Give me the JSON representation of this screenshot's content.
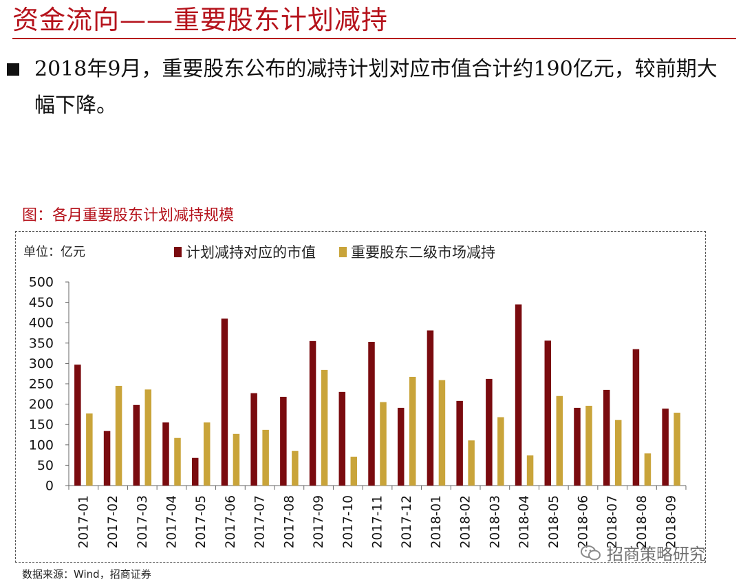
{
  "header": {
    "title": "资金流向——重要股东计划减持"
  },
  "bullet": {
    "text": "2018年9月，重要股东公布的减持计划对应市值合计约190亿元，较前期大幅下降。"
  },
  "figure": {
    "caption": "图：各月重要股东计划减持规模",
    "unit": "单位：亿元",
    "source": "数据来源：Wind，招商证券"
  },
  "watermark": {
    "text": "招商策略研究",
    "icon": "wechat-icon"
  },
  "colors": {
    "accent": "#b5121b",
    "series1": "#7a0b0f",
    "series2": "#c9a43a"
  },
  "chart_data": {
    "type": "bar",
    "categories": [
      "2017-01",
      "2017-02",
      "2017-03",
      "2017-04",
      "2017-05",
      "2017-06",
      "2017-07",
      "2017-08",
      "2017-09",
      "2017-10",
      "2017-11",
      "2017-12",
      "2018-01",
      "2018-02",
      "2018-03",
      "2018-04",
      "2018-05",
      "2018-06",
      "2018-07",
      "2018-08",
      "2018-09"
    ],
    "series": [
      {
        "name": "计划减持对应的市值",
        "color": "#7a0b0f",
        "values": [
          297,
          134,
          198,
          155,
          68,
          410,
          227,
          218,
          355,
          230,
          353,
          191,
          381,
          208,
          262,
          445,
          356,
          191,
          235,
          335,
          189
        ]
      },
      {
        "name": "重要股东二级市场减持",
        "color": "#c9a43a",
        "values": [
          177,
          245,
          236,
          117,
          155,
          127,
          137,
          85,
          284,
          71,
          205,
          267,
          259,
          111,
          168,
          74,
          220,
          196,
          161,
          79,
          179
        ]
      }
    ],
    "ylim": [
      0,
      500
    ],
    "yticks": [
      0,
      50,
      100,
      150,
      200,
      250,
      300,
      350,
      400,
      450,
      500
    ],
    "legend_position": "top",
    "grid": false
  }
}
